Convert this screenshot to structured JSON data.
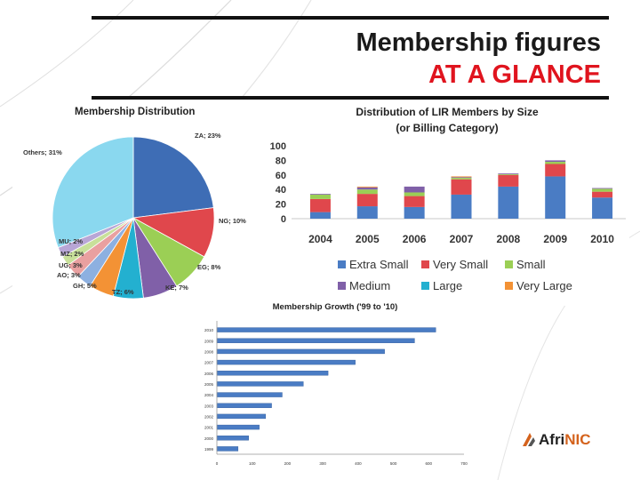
{
  "title": {
    "line1": "Membership figures",
    "line2": "AT A GLANCE"
  },
  "logo": {
    "part1": "Afri",
    "part2": "NIC"
  },
  "colors": {
    "title_accent": "#e0141e",
    "logo_accent": "#d4621c"
  },
  "chart_data": [
    {
      "type": "pie",
      "title": "Membership Distribution",
      "slices": [
        {
          "label": "ZA; 23%",
          "value": 23,
          "color": "#3e6db5"
        },
        {
          "label": "NG; 10%",
          "value": 10,
          "color": "#e0474c"
        },
        {
          "label": "EG; 8%",
          "value": 8,
          "color": "#9bcf55"
        },
        {
          "label": "KE; 7%",
          "value": 7,
          "color": "#8060a8"
        },
        {
          "label": "TZ; 6%",
          "value": 6,
          "color": "#23b0d0"
        },
        {
          "label": "GH; 5%",
          "value": 5,
          "color": "#f39235"
        },
        {
          "label": "AO; 3%",
          "value": 3,
          "color": "#8db0e0"
        },
        {
          "label": "UG; 3%",
          "value": 3,
          "color": "#e9a0a0"
        },
        {
          "label": "MZ; 2%",
          "value": 2,
          "color": "#c8e09a"
        },
        {
          "label": "MU; 2%",
          "value": 2,
          "color": "#b8a6d6"
        },
        {
          "label": "Others; 31%",
          "value": 31,
          "color": "#8ad8ef"
        }
      ]
    },
    {
      "type": "bar",
      "stacked": true,
      "title": "Distribution of LIR Members by Size",
      "subtitle": "(or Billing  Category)",
      "categories": [
        "2004",
        "2005",
        "2006",
        "2007",
        "2008",
        "2009",
        "2010"
      ],
      "ylim": [
        0,
        100
      ],
      "yticks": [
        "0",
        "20",
        "40",
        "60",
        "80",
        "100"
      ],
      "series": [
        {
          "name": "Extra Small",
          "color": "#4a7cc4",
          "values": [
            9,
            17,
            16,
            33,
            44,
            58,
            29
          ]
        },
        {
          "name": "Very Small",
          "color": "#e0474c",
          "values": [
            18,
            17,
            15,
            21,
            16,
            17,
            8
          ]
        },
        {
          "name": "Small",
          "color": "#9bcf55",
          "values": [
            6,
            6,
            5,
            2,
            1,
            3,
            4
          ]
        },
        {
          "name": "Medium",
          "color": "#8060a8",
          "values": [
            1,
            3,
            8,
            1,
            1,
            2,
            1
          ]
        },
        {
          "name": "Large",
          "color": "#23b0d0",
          "values": [
            0,
            0,
            0,
            0,
            0,
            0,
            0
          ]
        },
        {
          "name": "Very Large",
          "color": "#f39235",
          "values": [
            0,
            1,
            0,
            1,
            0,
            0,
            0
          ]
        }
      ],
      "legend_position": "bottom"
    },
    {
      "type": "bar",
      "orientation": "horizontal",
      "title": "Membership Growth ('99 to '10)",
      "categories": [
        "1999",
        "2000",
        "2001",
        "2002",
        "2003",
        "2004",
        "2005",
        "2006",
        "2007",
        "2008",
        "2009",
        "2010"
      ],
      "values": [
        60,
        90,
        120,
        138,
        155,
        185,
        245,
        315,
        392,
        475,
        560,
        620
      ],
      "xlim": [
        0,
        700
      ],
      "xticks": [
        "0",
        "100",
        "200",
        "300",
        "400",
        "500",
        "600",
        "700"
      ],
      "color": "#4a7cc4"
    }
  ]
}
